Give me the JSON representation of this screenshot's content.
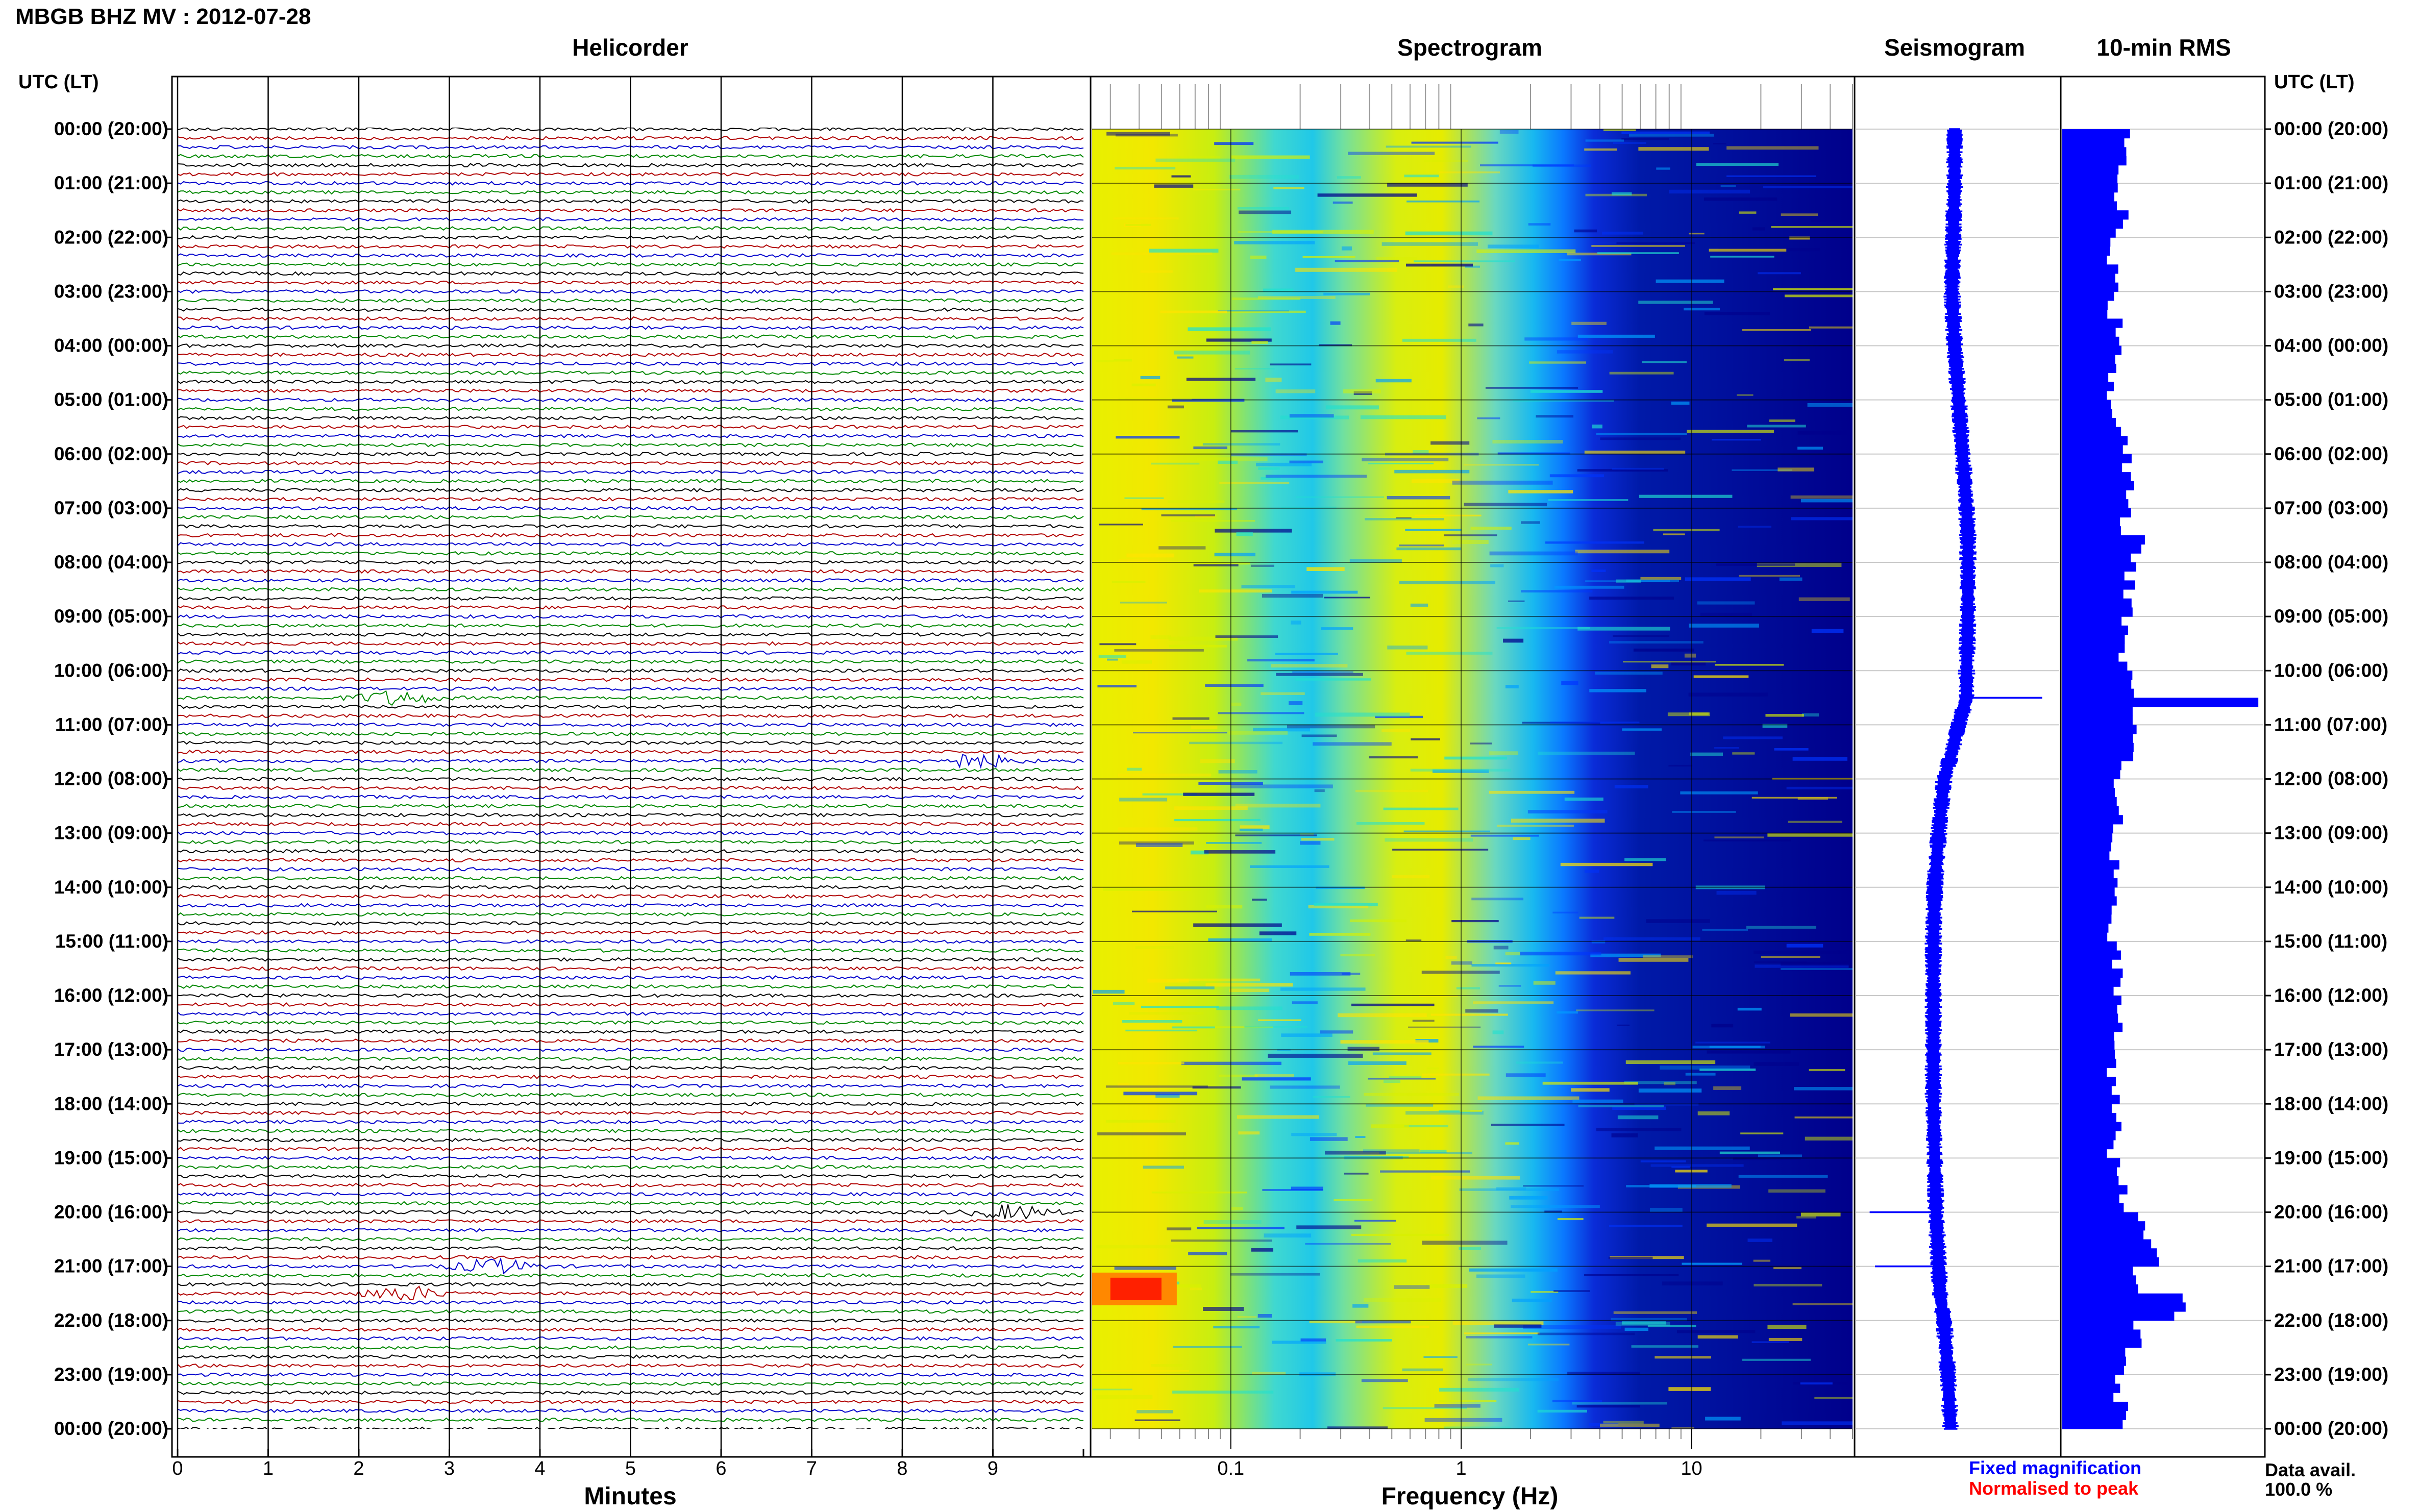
{
  "header": {
    "title": "MBGB BHZ MV : 2012-07-28"
  },
  "panels": {
    "helicorder": "Helicorder",
    "spectrogram": "Spectrogram",
    "seismogram": "Seismogram",
    "rms": "10-min RMS"
  },
  "time_axis": {
    "left_header": "UTC (LT)",
    "right_header": "UTC (LT)",
    "labels": [
      "00:00 (20:00)",
      "01:00 (21:00)",
      "02:00 (22:00)",
      "03:00 (23:00)",
      "04:00 (00:00)",
      "05:00 (01:00)",
      "06:00 (02:00)",
      "07:00 (03:00)",
      "08:00 (04:00)",
      "09:00 (05:00)",
      "10:00 (06:00)",
      "11:00 (07:00)",
      "12:00 (08:00)",
      "13:00 (09:00)",
      "14:00 (10:00)",
      "15:00 (11:00)",
      "16:00 (12:00)",
      "17:00 (13:00)",
      "18:00 (14:00)",
      "19:00 (15:00)",
      "20:00 (16:00)",
      "21:00 (17:00)",
      "22:00 (18:00)",
      "23:00 (19:00)",
      "00:00 (20:00)"
    ]
  },
  "legend": {
    "fixed": "Fixed magnification",
    "normalised": "Normalised to peak",
    "data_avail_label": "Data avail.",
    "data_avail_value": "100.0 %"
  },
  "colors": {
    "trace_cycle": [
      "#000000",
      "#b00000",
      "#0000cc",
      "#008800"
    ],
    "seismogram": "#0000ff",
    "rms": "#0000ff",
    "fixed_legend": "#0000ff",
    "normalised_legend": "#ff0000"
  },
  "chart_data": [
    {
      "type": "line",
      "panel": "Helicorder",
      "xlabel": "Minutes",
      "xlim": [
        0,
        10
      ],
      "xticks": [
        "0",
        "1",
        "2",
        "3",
        "4",
        "5",
        "6",
        "7",
        "8",
        "9"
      ],
      "ylim_hours_utc": [
        0,
        24
      ],
      "traces_per_hour": 6,
      "trace_minutes": 10,
      "events": [
        {
          "time": "10:30",
          "minute": 2.4,
          "note": "long-period pulse"
        },
        {
          "time": "11:40",
          "minute": 8.8,
          "note": "burst"
        },
        {
          "time": "20:00",
          "minute": 9.2,
          "note": "large burst"
        },
        {
          "time": "21:00",
          "minute": 3.5,
          "note": "burst"
        },
        {
          "time": "21:30",
          "minute": 2.5,
          "note": "tremor episode"
        }
      ]
    },
    {
      "type": "heatmap",
      "panel": "Spectrogram",
      "xlabel": "Frequency (Hz)",
      "xscale": "log",
      "xlim": [
        0.025,
        50
      ],
      "xticks": [
        "0.1",
        "1",
        "10"
      ],
      "colormap": [
        "#00008b",
        "#0033ff",
        "#00a0ff",
        "#20e0d0",
        "#d8f000",
        "#ffe400",
        "#ff4000"
      ],
      "peak": {
        "frequency_hz": [
          0.03,
          0.05
        ],
        "time_utc": "21:25"
      }
    },
    {
      "type": "line",
      "panel": "Seismogram",
      "series": [
        {
          "name": "Fixed magnification"
        }
      ],
      "x": [
        0.0,
        1.0,
        2.0,
        3.0,
        4.0,
        5.0,
        6.0,
        7.0,
        7.5,
        8.0,
        9.0,
        10.0,
        10.5,
        11.0,
        11.5,
        12.0,
        13.0,
        14.0,
        15.0,
        16.0,
        17.0,
        18.0,
        19.0,
        20.0,
        21.0,
        21.5,
        22.0,
        23.0,
        24.0
      ],
      "values": [
        0.0,
        0.0,
        -0.1,
        -0.2,
        0.0,
        0.3,
        0.6,
        0.9,
        1.0,
        1.0,
        1.0,
        0.9,
        0.9,
        0.3,
        -0.2,
        -0.8,
        -1.2,
        -1.5,
        -1.6,
        -1.6,
        -1.6,
        -1.6,
        -1.5,
        -1.4,
        -1.2,
        -1.1,
        -0.8,
        -0.5,
        -0.3
      ],
      "spikes": [
        {
          "hour": 10.5,
          "value": 3.3
        },
        {
          "hour": 20.0,
          "value": -3.2
        },
        {
          "hour": 21.0,
          "value": -3.0
        }
      ]
    },
    {
      "type": "bar",
      "panel": "10-min RMS",
      "x_hours": [
        0,
        0.5,
        1,
        1.5,
        2,
        2.5,
        3,
        3.5,
        4,
        4.5,
        5,
        5.5,
        6,
        6.5,
        7,
        7.5,
        8,
        8.5,
        9,
        9.5,
        10,
        10.5,
        11,
        11.5,
        12,
        12.5,
        13,
        13.5,
        14,
        14.5,
        15,
        15.5,
        16,
        16.5,
        17,
        17.5,
        18,
        18.5,
        19,
        19.5,
        20,
        20.5,
        21,
        21.5,
        22,
        22.5,
        23,
        23.5
      ],
      "values": [
        1.4,
        1.2,
        1.1,
        1.2,
        1.0,
        1.1,
        1.0,
        1.1,
        1.1,
        1.0,
        1.0,
        1.2,
        1.3,
        1.4,
        1.3,
        1.5,
        1.4,
        1.3,
        1.2,
        1.2,
        1.3,
        3.9,
        1.4,
        1.3,
        1.0,
        1.1,
        1.0,
        1.1,
        1.0,
        1.0,
        1.1,
        1.1,
        1.2,
        1.1,
        1.0,
        1.1,
        1.1,
        1.0,
        1.1,
        1.2,
        1.6,
        1.9,
        1.5,
        2.5,
        1.6,
        1.3,
        1.1,
        1.2
      ],
      "max_value": 4.0
    }
  ]
}
